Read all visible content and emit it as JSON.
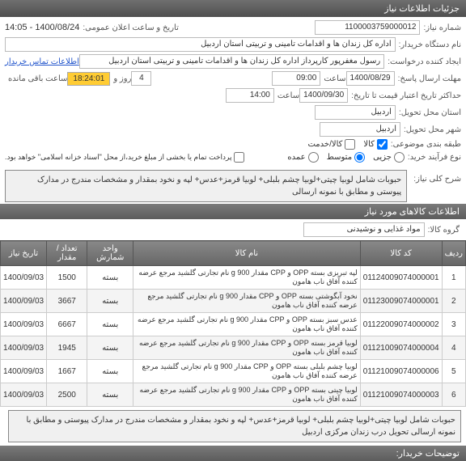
{
  "header": {
    "title": "جزئیات اطلاعات نیاز"
  },
  "form": {
    "need_no_label": "شماره نیاز:",
    "need_no": "1100003759000012",
    "announce_label": "تاریخ و ساعت اعلان عمومی:",
    "announce": "1400/08/24 - 14:05",
    "buyer_label": "نام دستگاه خریدار:",
    "buyer": "اداره کل زندان ها و اقدامات تامینی و تربیتی استان اردبیل",
    "creator_label": "ایجاد کننده درخواست:",
    "creator": "رسول مغفرپور کارپرداز اداره کل زندان ها و اقدامات تامینی و تربیتی استان اردبیل",
    "contact_link": "اطلاعات تماس خریدار",
    "deadline_label": "مهلت ارسال پاسخ:",
    "deadline_date": "1400/08/29",
    "hour_label": "ساعت",
    "deadline_time": "09:00",
    "days_label": "روز و",
    "days_value": "4",
    "countdown": "18:24:01",
    "remain_label": "ساعت باقی مانده",
    "max_valid_label": "حداکثر تاریخ اعتبار قیمت تا تاریخ:",
    "max_valid_date": "1400/09/30",
    "max_valid_time": "14:00",
    "province_label": "استان محل تحویل:",
    "province": "اردبیل",
    "city_label": "شهر محل تحویل:",
    "city": "اردبیل",
    "packing_label": "طبقه بندی موضوعی:",
    "packing_chk1": "کالا",
    "packing_chk2": "کالا/خدمت",
    "process_label": "نوع فرآیند خرید:",
    "proc_low": "جزیی",
    "proc_mid": "متوسط",
    "proc_large": "عمده",
    "payment_note": "پرداخت تمام یا بخشی از مبلغ خرید،از محل \"اسناد خزانه اسلامی\" خواهد بود.",
    "desc_label": "شرح کلی نیاز:",
    "desc": "حبوبات شامل لوبیا چیتی+لوبیا چشم بلبلی+ لوبیا قرمز+عدس+ لپه و نخود بمقدار و مشخصات مندرج در مدارک پیوستی و مطابق با نمونه ارسالی"
  },
  "items_section": {
    "title": "اطلاعات کالاهای مورد نیاز",
    "group_label": "گروه کالا:",
    "group_value": "مواد غذایی و نوشیدنی"
  },
  "table": {
    "headers": {
      "row": "ردیف",
      "code": "کد کالا",
      "name": "نام کالا",
      "unit": "واحد شمارش",
      "qty": "تعداد / مقدار",
      "date": "تاریخ نیاز"
    },
    "rows": [
      {
        "row": "1",
        "code": "01124009074000001",
        "name": "لپه تبریزی بسته OPP و CPP مقدار 900 g نام تجارتی گلشید مرجع عرضه کننده آفاق ناب هامون",
        "unit": "بسته",
        "qty": "1500",
        "date": "1400/09/03"
      },
      {
        "row": "2",
        "code": "01123009074000001",
        "name": "نخود آبگوشتی بسته OPP و CPP مقدار 900 g نام تجارتی گلشید مرجع عرضه کننده آفاق ناب هامون",
        "unit": "بسته",
        "qty": "3667",
        "date": "1400/09/03"
      },
      {
        "row": "3",
        "code": "01122009074000002",
        "name": "عدس سبز بسته OPP و CPP مقدار 900 g نام تجارتی گلشید مرجع عرضه کننده آفاق ناب هامون",
        "unit": "بسته",
        "qty": "6667",
        "date": "1400/09/03"
      },
      {
        "row": "4",
        "code": "01121009074000004",
        "name": "لوبیا قرمز بسته OPP و CPP مقدار 900 g نام تجارتی گلشید مرجع عرضه کننده آفاق ناب هامون",
        "unit": "بسته",
        "qty": "1945",
        "date": "1400/09/03"
      },
      {
        "row": "5",
        "code": "01121009074000006",
        "name": "لوبیا چشم بلبلی بسته OPP و CPP مقدار 900 g نام تجارتی گلشید مرجع عرضه کننده آفاق ناب هامون",
        "unit": "بسته",
        "qty": "1667",
        "date": "1400/09/03"
      },
      {
        "row": "6",
        "code": "01121009074000003",
        "name": "لوبیا چیتی بسته OPP و CPP مقدار 900 g نام تجارتی گلشید مرجع عرضه کننده آفاق ناب هامون",
        "unit": "بسته",
        "qty": "2500",
        "date": "1400/09/03"
      }
    ]
  },
  "footer": {
    "desc": "حبوبات شامل لوبیا چیتی+لوبیا چشم بلبلی+ لوبیا قرمز+عدس+ لپه و نخود بمقدار و مشخصات مندرج در مدارک پیوستی و مطابق با نمونه ارسالی تحویل درب زندان مرکزی اردبیل",
    "notes_label": "توضیحات خریدار:"
  }
}
